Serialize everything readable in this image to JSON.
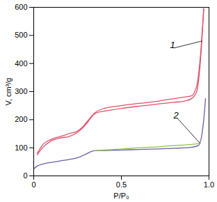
{
  "chart_data": {
    "type": "line",
    "x_label": "P/P₀",
    "y_label": "V, cm³/g",
    "xlim": [
      0,
      1
    ],
    "ylim": [
      0,
      600
    ],
    "xticks": [
      0,
      0.5,
      {
        "value": 1,
        "label": "1.0"
      }
    ],
    "yticks": [
      0,
      100,
      200,
      300,
      400,
      500,
      600
    ],
    "grid": false,
    "series": [
      {
        "name": "1",
        "color": "#e0506a",
        "x": [
          0.02,
          0.05,
          0.1,
          0.15,
          0.2,
          0.25,
          0.3,
          0.33,
          0.36,
          0.4,
          0.5,
          0.6,
          0.7,
          0.8,
          0.85,
          0.9,
          0.93,
          0.95,
          0.97
        ],
        "values": [
          75,
          100,
          125,
          135,
          140,
          155,
          185,
          210,
          225,
          230,
          240,
          248,
          255,
          262,
          265,
          275,
          300,
          400,
          595
        ]
      },
      {
        "name": "1",
        "color": "#e0506a",
        "x": [
          0.97,
          0.95,
          0.93,
          0.9,
          0.85,
          0.8,
          0.7,
          0.6,
          0.5,
          0.4,
          0.35,
          0.32,
          0.28,
          0.25,
          0.2,
          0.15,
          0.1,
          0.05,
          0.02
        ],
        "values": [
          595,
          420,
          320,
          285,
          280,
          275,
          265,
          258,
          250,
          240,
          225,
          205,
          175,
          160,
          150,
          140,
          130,
          110,
          80
        ]
      },
      {
        "name": "2",
        "color": "#6a5fa8",
        "x": [
          0,
          0.02,
          0.05,
          0.1,
          0.15,
          0.2,
          0.25,
          0.3,
          0.33,
          0.36,
          0.4,
          0.5,
          0.6,
          0.7,
          0.8,
          0.9,
          0.94,
          0.96,
          0.97,
          0.98
        ],
        "values": [
          25,
          35,
          42,
          48,
          53,
          58,
          65,
          78,
          87,
          90,
          90,
          92,
          94,
          96,
          98,
          102,
          108,
          150,
          200,
          275
        ]
      },
      {
        "name": "2",
        "color": "#8cc63f",
        "x": [
          0.94,
          0.9,
          0.8,
          0.7,
          0.6,
          0.5,
          0.4,
          0.35
        ],
        "values": [
          115,
          112,
          108,
          103,
          100,
          96,
          92,
          90
        ]
      }
    ],
    "annotations": [
      {
        "text": "1",
        "x": 0.96,
        "y": 480,
        "text_x": 0.8,
        "text_y": 455
      },
      {
        "text": "2",
        "x": 0.95,
        "y": 115,
        "text_x": 0.82,
        "text_y": 205
      }
    ]
  }
}
